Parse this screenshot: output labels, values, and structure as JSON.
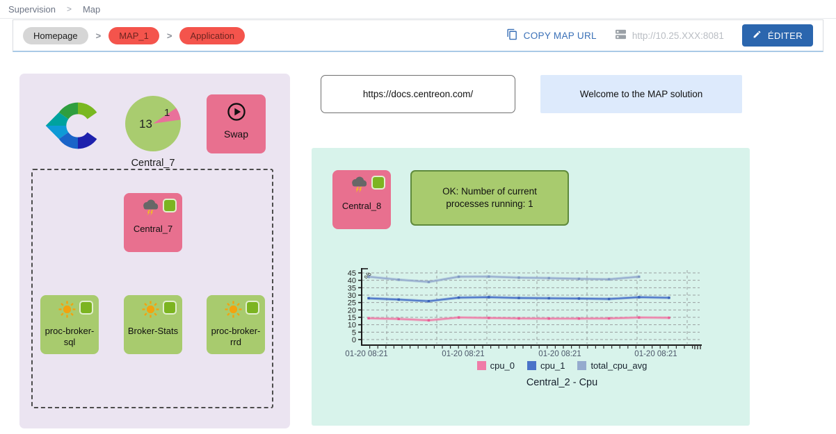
{
  "nav": {
    "supervision": "Supervision",
    "map": "Map"
  },
  "toolbar": {
    "breadcrumb": {
      "homepage": "Homepage",
      "map1": "MAP_1",
      "application": "Application"
    },
    "copy_map_url": "COPY MAP URL",
    "server_url": "http://10.25.XXX:8081",
    "edit": "ÉDITER"
  },
  "left_panel": {
    "pie": {
      "name": "Central_7",
      "ok_count": "13",
      "problem_count": "1",
      "ok_color": "#a9cc6f",
      "problem_color": "#e9719b"
    },
    "swap": {
      "label": "Swap"
    },
    "central7": {
      "label": "Central_7"
    },
    "services": [
      {
        "label": "proc-broker-sql"
      },
      {
        "label": "Broker-Stats"
      },
      {
        "label": "proc-broker-rrd"
      }
    ]
  },
  "right_panel": {
    "docs_url": "https://docs.centreon.com/",
    "welcome": "Welcome to the MAP solution",
    "central8": {
      "label": "Central_8"
    },
    "status_message": "OK: Number of current processes running: 1"
  },
  "colors": {
    "critical_pink": "#e8708f",
    "ok_green": "#a8cb6e",
    "badge_green": "#7cb421",
    "accent_blue": "#2b66ae",
    "pill_red": "#f4544c",
    "panel_lavender": "#ebe4f1",
    "panel_mint": "#d8f3eb"
  },
  "chart_data": {
    "type": "line",
    "title": "Central_2 - Cpu",
    "ylabel": "%",
    "xlabel": "",
    "ylim": [
      0,
      45
    ],
    "yticks": [
      0,
      5,
      10,
      15,
      20,
      25,
      30,
      35,
      40,
      45
    ],
    "xtick_labels": [
      "01-20 08:21",
      "01-20 08:21",
      "01-20 08:21",
      "01-20 08:21"
    ],
    "grid": true,
    "legend_position": "bottom",
    "series": [
      {
        "name": "cpu_0",
        "color": "#ef7ca7",
        "point_color": "#e85e95",
        "values": [
          14.4,
          13.9,
          13.0,
          14.9,
          14.6,
          14.3,
          14.2,
          14.2,
          14.3,
          14.9,
          14.7
        ]
      },
      {
        "name": "cpu_1",
        "color": "#4a73c8",
        "point_color": "#3a62b8",
        "values": [
          27.9,
          27.0,
          25.9,
          28.3,
          28.6,
          28.1,
          27.9,
          27.7,
          27.4,
          28.6,
          28.2
        ]
      },
      {
        "name": "total_cpu_avg",
        "color": "#95abce",
        "point_color": "#7f98c2",
        "values": [
          42.4,
          40.4,
          38.9,
          42.4,
          42.5,
          41.8,
          41.5,
          41.0,
          40.7,
          42.4,
          null
        ]
      }
    ]
  }
}
